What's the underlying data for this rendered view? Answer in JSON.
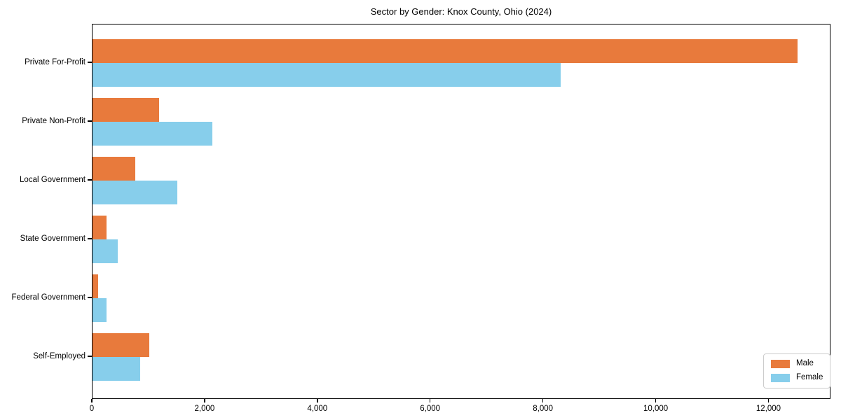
{
  "chart_data": {
    "type": "bar",
    "orientation": "horizontal",
    "title": "Sector by Gender: Knox County, Ohio (2024)",
    "categories": [
      "Private For-Profit",
      "Private Non-Profit",
      "Local Government",
      "State Government",
      "Federal Government",
      "Self-Employed"
    ],
    "series": [
      {
        "name": "Male",
        "color": "#e87a3c",
        "values": [
          12500,
          1180,
          760,
          250,
          100,
          1000
        ]
      },
      {
        "name": "Female",
        "color": "#87ceeb",
        "values": [
          8300,
          2130,
          1500,
          450,
          250,
          850
        ]
      }
    ],
    "xlabel": "",
    "ylabel": "",
    "xlim": [
      0,
      13100
    ],
    "x_ticks": [
      0,
      2000,
      4000,
      6000,
      8000,
      10000,
      12000
    ],
    "x_tick_labels": [
      "0",
      "2,000",
      "4,000",
      "6,000",
      "8,000",
      "10,000",
      "12,000"
    ],
    "grid": false,
    "legend_position": "lower right",
    "spine_color": "#000000",
    "background": "#ffffff"
  }
}
